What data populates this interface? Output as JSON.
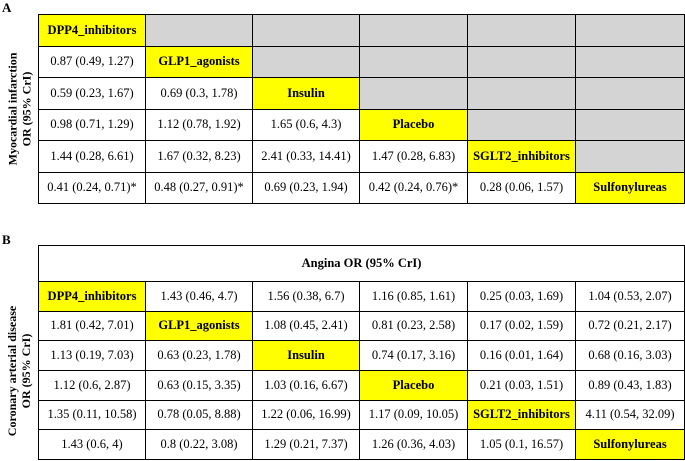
{
  "panelA": {
    "label": "A",
    "ylabel_line1": "Myocardial infarction",
    "ylabel_line2": "OR (95% CrI)",
    "rows": [
      [
        "DPP4_inhibitors",
        "",
        "",
        "",
        "",
        ""
      ],
      [
        "0.87 (0.49, 1.27)",
        "GLP1_agonists",
        "",
        "",
        "",
        ""
      ],
      [
        "0.59 (0.23, 1.67)",
        "0.69 (0.3, 1.78)",
        "Insulin",
        "",
        "",
        ""
      ],
      [
        "0.98 (0.71, 1.29)",
        "1.12 (0.78, 1.92)",
        "1.65 (0.6, 4.3)",
        "Placebo",
        "",
        ""
      ],
      [
        "1.44 (0.28, 6.61)",
        "1.67 (0.32, 8.23)",
        "2.41 (0.33, 14.41)",
        "1.47 (0.28, 6.83)",
        "SGLT2_inhibitors",
        ""
      ],
      [
        "0.41 (0.24, 0.71)*",
        "0.48 (0.27, 0.91)*",
        "0.69 (0.23, 1.94)",
        "0.42 (0.24, 0.76)*",
        "0.28 (0.06, 1.57)",
        "Sulfonylureas"
      ]
    ]
  },
  "panelB": {
    "label": "B",
    "header": "Angina OR (95% CrI)",
    "ylabel_line1": "Coronary arterial disease",
    "ylabel_line2": "OR (95% CrI)",
    "rows": [
      [
        "DPP4_inhibitors",
        "1.43 (0.46, 4.7)",
        "1.56 (0.38, 6.7)",
        "1.16 (0.85, 1.61)",
        "0.25 (0.03, 1.69)",
        "1.04 (0.53, 2.07)"
      ],
      [
        "1.81 (0.42, 7.01)",
        "GLP1_agonists",
        "1.08 (0.45, 2.41)",
        "0.81 (0.23, 2.58)",
        "0.17 (0.02, 1.59)",
        "0.72 (0.21, 2.17)"
      ],
      [
        "1.13 (0.19, 7.03)",
        "0.63 (0.23, 1.78)",
        "Insulin",
        "0.74 (0.17, 3.16)",
        "0.16 (0.01, 1.64)",
        "0.68 (0.16, 3.03)"
      ],
      [
        "1.12 (0.6, 2.87)",
        "0.63 (0.15, 3.35)",
        "1.03 (0.16, 6.67)",
        "Placebo",
        "0.21 (0.03, 1.51)",
        "0.89 (0.43, 1.83)"
      ],
      [
        "1.35 (0.11, 10.58)",
        "0.78 (0.05, 8.88)",
        "1.22 (0.06, 16.99)",
        "1.17 (0.09, 10.05)",
        "SGLT2_inhibitors",
        "4.11 (0.54, 32.09)"
      ],
      [
        "1.43 (0.6, 4)",
        "0.8 (0.22, 3.08)",
        "1.29 (0.21, 7.37)",
        "1.26 (0.36, 4.03)",
        "1.05 (0.1, 16.57)",
        "Sulfonylureas"
      ]
    ]
  }
}
